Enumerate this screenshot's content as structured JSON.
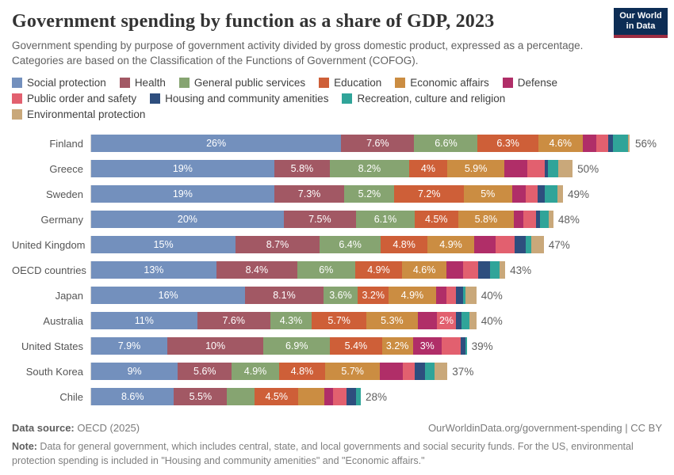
{
  "header": {
    "title": "Government spending by function as a share of GDP, 2023",
    "subtitle": "Government spending by purpose of government activity divided by gross domestic product, expressed as a percentage. Categories are based on the Classification of the Functions of Government (COFOG).",
    "logo": {
      "line1": "Our World",
      "line2": "in Data",
      "bg_color": "#0d2d55",
      "stripe_color": "#9d2d42"
    }
  },
  "legend": [
    {
      "label": "Social protection",
      "color": "#7390bd"
    },
    {
      "label": "Health",
      "color": "#a25864"
    },
    {
      "label": "General public services",
      "color": "#86a471"
    },
    {
      "label": "Education",
      "color": "#ce5f38"
    },
    {
      "label": "Economic affairs",
      "color": "#cb8d42"
    },
    {
      "label": "Defense",
      "color": "#b02e68"
    },
    {
      "label": "Public order and safety",
      "color": "#e2606f"
    },
    {
      "label": "Housing and community amenities",
      "color": "#2e4e7e"
    },
    {
      "label": "Recreation, culture and religion",
      "color": "#30a499"
    },
    {
      "label": "Environmental protection",
      "color": "#c9a87a"
    }
  ],
  "chart_data": {
    "type": "bar",
    "stacked": true,
    "orientation": "horizontal",
    "unit": "%",
    "xlim": [
      0,
      56
    ],
    "grid": false,
    "series_names": [
      "Social protection",
      "Health",
      "General public services",
      "Education",
      "Economic affairs",
      "Defense",
      "Public order and safety",
      "Housing and community amenities",
      "Recreation, culture and religion",
      "Environmental protection"
    ],
    "series_colors": [
      "#7390bd",
      "#a25864",
      "#86a471",
      "#ce5f38",
      "#cb8d42",
      "#b02e68",
      "#e2606f",
      "#2e4e7e",
      "#30a499",
      "#c9a87a"
    ],
    "categories": [
      "Finland",
      "Greece",
      "Sweden",
      "Germany",
      "United Kingdom",
      "OECD countries",
      "Japan",
      "Australia",
      "United States",
      "South Korea",
      "Chile"
    ],
    "rows": [
      {
        "country": "Finland",
        "total": 56,
        "total_label": "56%",
        "values": [
          26,
          7.6,
          6.6,
          6.3,
          4.6,
          1.4,
          1.3,
          0.5,
          1.5,
          0.2
        ],
        "labels": [
          "26%",
          "7.6%",
          "6.6%",
          "6.3%",
          "4.6%",
          "",
          "",
          "",
          "",
          ""
        ]
      },
      {
        "country": "Greece",
        "total": 50,
        "total_label": "50%",
        "values": [
          19,
          5.8,
          8.2,
          4,
          5.9,
          2.4,
          1.8,
          0.3,
          1.1,
          1.5
        ],
        "labels": [
          "19%",
          "5.8%",
          "8.2%",
          "4%",
          "5.9%",
          "",
          "",
          "",
          "",
          ""
        ]
      },
      {
        "country": "Sweden",
        "total": 49,
        "total_label": "49%",
        "values": [
          19,
          7.3,
          5.2,
          7.2,
          5,
          1.4,
          1.3,
          0.7,
          1.3,
          0.6
        ],
        "labels": [
          "19%",
          "7.3%",
          "5.2%",
          "7.2%",
          "5%",
          "",
          "",
          "",
          "",
          ""
        ]
      },
      {
        "country": "Germany",
        "total": 48,
        "total_label": "48%",
        "values": [
          20,
          7.5,
          6.1,
          4.5,
          5.8,
          1.0,
          1.3,
          0.4,
          0.9,
          0.5
        ],
        "labels": [
          "20%",
          "7.5%",
          "6.1%",
          "4.5%",
          "5.8%",
          "",
          "",
          "",
          "",
          ""
        ]
      },
      {
        "country": "United Kingdom",
        "total": 47,
        "total_label": "47%",
        "values": [
          15,
          8.7,
          6.4,
          4.8,
          4.9,
          2.2,
          2.0,
          1.1,
          0.6,
          1.3
        ],
        "labels": [
          "15%",
          "8.7%",
          "6.4%",
          "4.8%",
          "4.9%",
          "",
          "",
          "",
          "",
          ""
        ]
      },
      {
        "country": "OECD countries",
        "total": 43,
        "total_label": "43%",
        "values": [
          13,
          8.4,
          6,
          4.9,
          4.6,
          1.7,
          1.6,
          1.2,
          1.0,
          0.6
        ],
        "labels": [
          "13%",
          "8.4%",
          "6%",
          "4.9%",
          "4.6%",
          "",
          "",
          "",
          "",
          ""
        ]
      },
      {
        "country": "Japan",
        "total": 40,
        "total_label": "40%",
        "values": [
          16,
          8.1,
          3.6,
          3.2,
          4.9,
          1.1,
          1.0,
          0.7,
          0.3,
          1.1
        ],
        "labels": [
          "16%",
          "8.1%",
          "3.6%",
          "3.2%",
          "4.9%",
          "",
          "",
          "",
          "",
          ""
        ]
      },
      {
        "country": "Australia",
        "total": 40,
        "total_label": "40%",
        "values": [
          11,
          7.6,
          4.3,
          5.7,
          5.3,
          2.0,
          2.0,
          0.6,
          0.8,
          0.7
        ],
        "labels": [
          "11%",
          "7.6%",
          "4.3%",
          "5.7%",
          "5.3%",
          "",
          "2%",
          "",
          "",
          ""
        ]
      },
      {
        "country": "United States",
        "total": 39,
        "total_label": "39%",
        "values": [
          7.9,
          10,
          6.9,
          5.4,
          3.2,
          3.0,
          2.0,
          0.45,
          0.15,
          0
        ],
        "labels": [
          "7.9%",
          "10%",
          "6.9%",
          "5.4%",
          "3.2%",
          "3%",
          "",
          "",
          "",
          ""
        ]
      },
      {
        "country": "South Korea",
        "total": 37,
        "total_label": "37%",
        "values": [
          9,
          5.6,
          4.9,
          4.8,
          5.7,
          2.4,
          1.2,
          1.1,
          1.0,
          1.3
        ],
        "labels": [
          "9%",
          "5.6%",
          "4.9%",
          "4.8%",
          "5.7%",
          "",
          "",
          "",
          "",
          ""
        ]
      },
      {
        "country": "Chile",
        "total": 28,
        "total_label": "28%",
        "values": [
          8.6,
          5.5,
          2.9,
          4.5,
          2.7,
          0.9,
          1.4,
          1.0,
          0.5,
          0
        ],
        "labels": [
          "8.6%",
          "5.5%",
          "",
          "4.5%",
          "",
          "",
          "",
          "",
          "",
          ""
        ]
      }
    ]
  },
  "footer": {
    "datasource_label": "Data source:",
    "datasource_text": " OECD (2025)",
    "credit": "OurWorldinData.org/government-spending | CC BY",
    "note_label": "Note:",
    "note_text": " Data for general government, which includes central, state, and local governments and social security funds. For the US, environmental protection spending is included in \"Housing and community amenities\" and \"Economic affairs.\""
  }
}
